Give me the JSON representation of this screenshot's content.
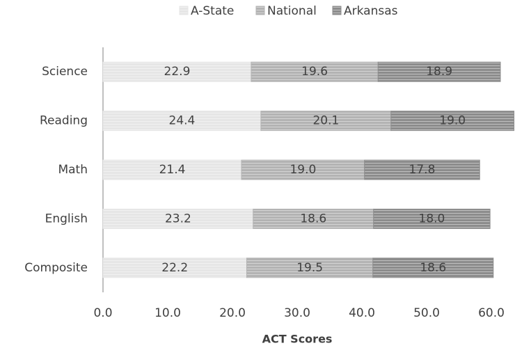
{
  "chart_data": {
    "type": "stacked-bar-horizontal",
    "x_label": "ACT Scores",
    "categories": [
      "Science",
      "Reading",
      "Math",
      "English",
      "Composite"
    ],
    "series": [
      {
        "name": "A-State",
        "color": "#e6e6e6",
        "values": [
          22.9,
          24.4,
          21.4,
          23.2,
          22.2
        ],
        "value_labels": [
          "22.9",
          "24.4",
          "21.4",
          "23.2",
          "22.2"
        ]
      },
      {
        "name": "National",
        "color": "#b3b3b3",
        "values": [
          19.6,
          20.1,
          19.0,
          18.6,
          19.5
        ],
        "value_labels": [
          "19.6",
          "20.1",
          "19.0",
          "18.6",
          "19.5"
        ]
      },
      {
        "name": "Arkansas",
        "color": "#8c8c8c",
        "values": [
          18.9,
          19.0,
          17.8,
          18.0,
          18.6
        ],
        "value_labels": [
          "18.9",
          "19.0",
          "17.8",
          "18.0",
          "18.6"
        ]
      }
    ],
    "xlim": [
      0,
      60
    ],
    "xticks": [
      {
        "value": 0,
        "label": "0.0"
      },
      {
        "value": 10,
        "label": "10.0"
      },
      {
        "value": 20,
        "label": "20.0"
      },
      {
        "value": 30,
        "label": "30.0"
      },
      {
        "value": 40,
        "label": "40.0"
      },
      {
        "value": 50,
        "label": "50.0"
      },
      {
        "value": 60,
        "label": "60.0"
      }
    ],
    "legend": "top"
  }
}
